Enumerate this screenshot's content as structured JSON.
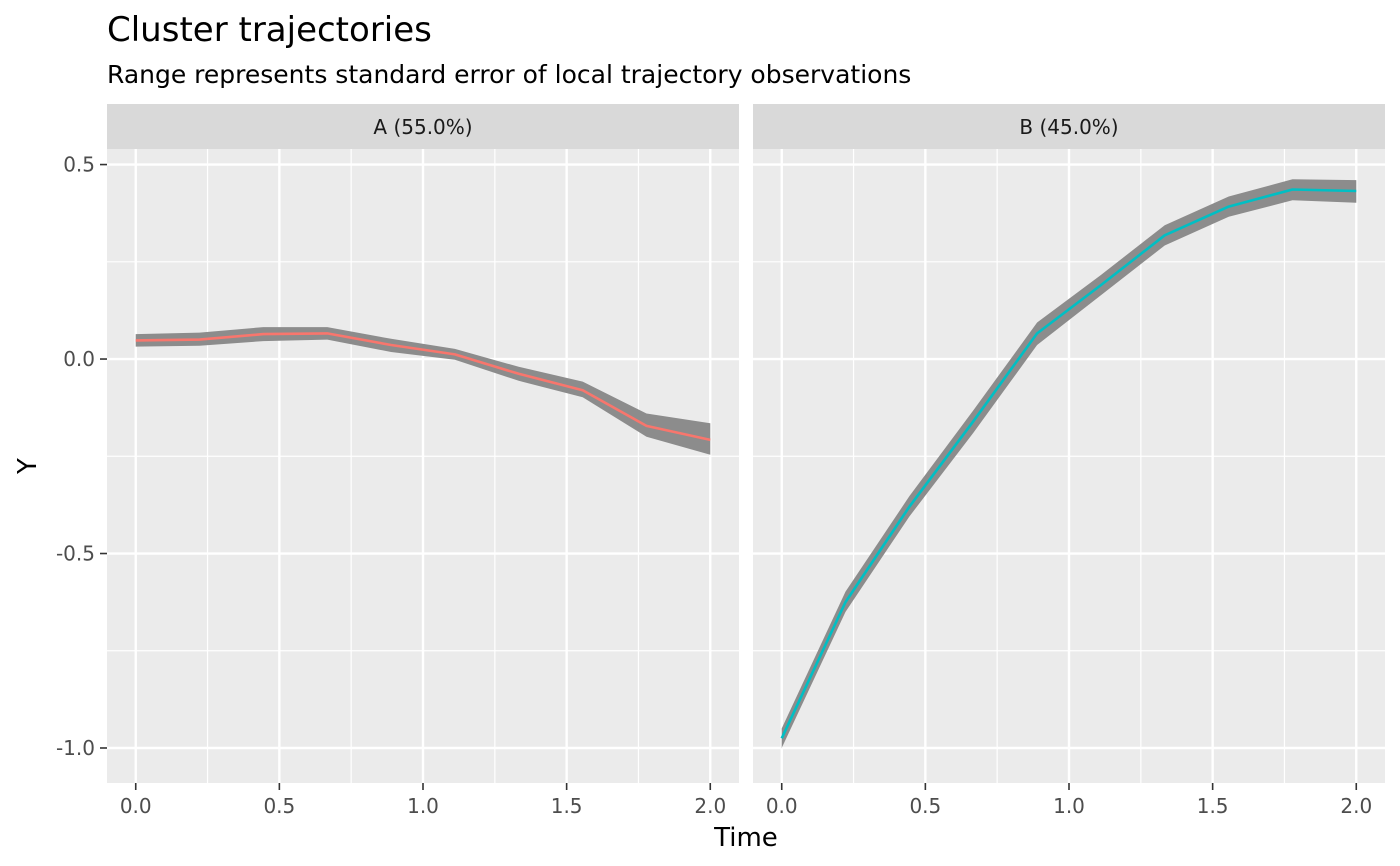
{
  "chart_data": {
    "type": "line",
    "title": "Cluster trajectories",
    "subtitle": "Range represents standard error of local trajectory observations",
    "xlabel": "Time",
    "ylabel": "Y",
    "xlim": [
      -0.1,
      2.1
    ],
    "ylim": [
      -1.09,
      0.54
    ],
    "x_ticks": [
      0.0,
      0.5,
      1.0,
      1.5,
      2.0
    ],
    "x_tick_labels": [
      "0.0",
      "0.5",
      "1.0",
      "1.5",
      "2.0"
    ],
    "y_ticks": [
      0.5,
      0.0,
      -0.5,
      -1.0
    ],
    "y_tick_labels": [
      "0.5",
      "0.0",
      "-0.5",
      "-1.0"
    ],
    "grid": true,
    "ribbon_color": "#8c8c8c",
    "panel_color": "#ebebeb",
    "strip_color": "#d9d9d9",
    "panels": [
      {
        "label": "A (55.0%)",
        "color": "#F8766D",
        "x": [
          0.0,
          0.222,
          0.444,
          0.667,
          0.889,
          1.111,
          1.333,
          1.556,
          1.778,
          2.0
        ],
        "y": [
          0.048,
          0.05,
          0.064,
          0.066,
          0.036,
          0.012,
          -0.038,
          -0.08,
          -0.172,
          -0.208
        ],
        "lower": [
          0.032,
          0.034,
          0.046,
          0.05,
          0.018,
          -0.002,
          -0.056,
          -0.098,
          -0.2,
          -0.246
        ],
        "upper": [
          0.064,
          0.068,
          0.082,
          0.082,
          0.052,
          0.026,
          -0.02,
          -0.058,
          -0.14,
          -0.165
        ]
      },
      {
        "label": "B (45.0%)",
        "color": "#00BFC4",
        "x": [
          0.0,
          0.222,
          0.444,
          0.667,
          0.889,
          1.111,
          1.333,
          1.556,
          1.778,
          2.0
        ],
        "y": [
          -0.975,
          -0.625,
          -0.38,
          -0.16,
          0.066,
          0.19,
          0.318,
          0.392,
          0.436,
          0.432
        ],
        "lower": [
          -1.0,
          -0.65,
          -0.405,
          -0.19,
          0.036,
          0.164,
          0.292,
          0.366,
          0.408,
          0.402
        ],
        "upper": [
          -0.95,
          -0.598,
          -0.353,
          -0.132,
          0.094,
          0.216,
          0.344,
          0.418,
          0.462,
          0.46
        ]
      }
    ]
  }
}
